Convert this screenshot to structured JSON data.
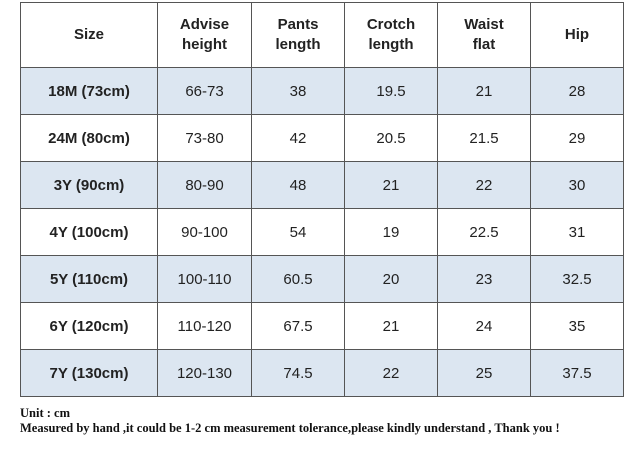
{
  "table": {
    "header": [
      [
        "Size"
      ],
      [
        "Advise",
        "height"
      ],
      [
        "Pants",
        "length"
      ],
      [
        "Crotch",
        "length"
      ],
      [
        "Waist",
        "flat"
      ],
      [
        "Hip"
      ]
    ],
    "rows": [
      [
        "18M (73cm)",
        "66-73",
        "38",
        "19.5",
        "21",
        "28"
      ],
      [
        "24M (80cm)",
        "73-80",
        "42",
        "20.5",
        "21.5",
        "29"
      ],
      [
        "3Y (90cm)",
        "80-90",
        "48",
        "21",
        "22",
        "30"
      ],
      [
        "4Y (100cm)",
        "90-100",
        "54",
        "19",
        "22.5",
        "31"
      ],
      [
        "5Y (110cm)",
        "100-110",
        "60.5",
        "20",
        "23",
        "32.5"
      ],
      [
        "6Y (120cm)",
        "110-120",
        "67.5",
        "21",
        "24",
        "35"
      ],
      [
        "7Y (130cm)",
        "120-130",
        "74.5",
        "22",
        "25",
        "37.5"
      ]
    ]
  },
  "notes": [
    "Unit : cm",
    "Measured by hand ,it could be 1-2 cm measurement tolerance,please kindly understand , Thank you !"
  ]
}
